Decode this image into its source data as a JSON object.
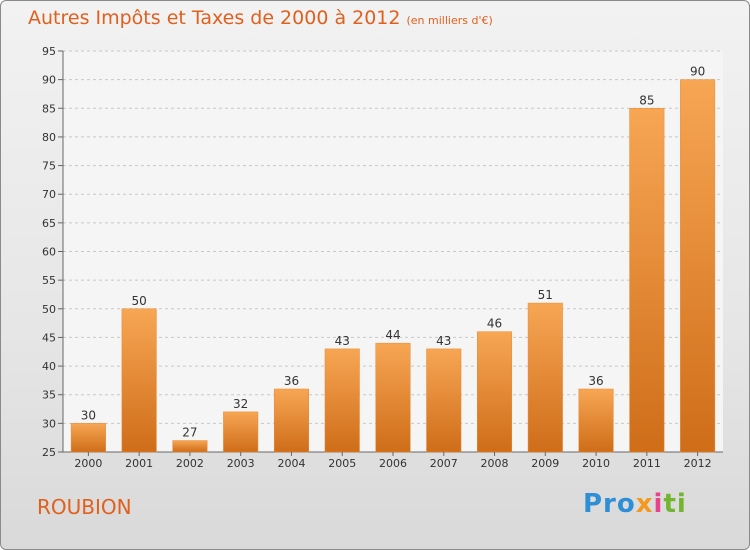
{
  "header": {
    "title": "Autres Impôts et Taxes de 2000 à 2012",
    "unit": "(en milliers d'€)"
  },
  "footer": {
    "town": "ROUBION",
    "logo": {
      "p1": "Pro",
      "p2": "x",
      "p3": "i",
      "p4": "ti"
    }
  },
  "colors": {
    "accent": "#e0601e",
    "bar_top": "#f7a654",
    "bar_bottom": "#cf6d19"
  },
  "chart_data": {
    "type": "bar",
    "title": "Autres Impôts et Taxes de 2000 à 2012",
    "subtitle": "(en milliers d'€)",
    "xlabel": "",
    "ylabel": "",
    "categories": [
      "2000",
      "2001",
      "2002",
      "2003",
      "2004",
      "2005",
      "2006",
      "2007",
      "2008",
      "2009",
      "2010",
      "2011",
      "2012"
    ],
    "values": [
      30,
      50,
      27,
      32,
      36,
      43,
      44,
      43,
      46,
      51,
      36,
      85,
      90
    ],
    "ylim": [
      25,
      95
    ],
    "yticks": [
      25,
      30,
      35,
      40,
      45,
      50,
      55,
      60,
      65,
      70,
      75,
      80,
      85,
      90,
      95
    ],
    "grid": "horizontal dashed",
    "legend": "none",
    "data_labels": true
  }
}
